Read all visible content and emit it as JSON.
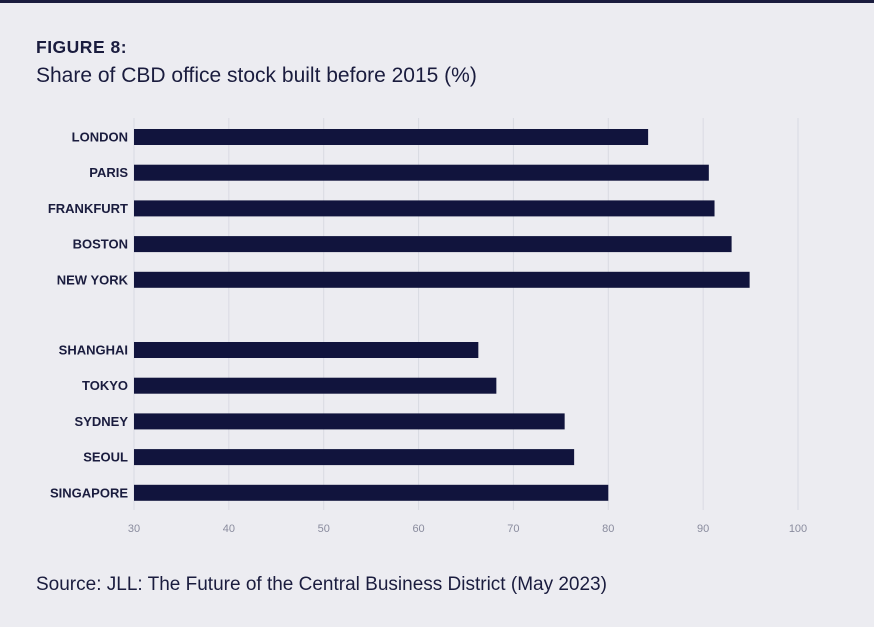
{
  "figure": {
    "label": "FIGURE 8:",
    "title": "Share of CBD office stock built before 2015 (%)",
    "source": "Source: JLL: The Future of the Central Business District (May 2023)"
  },
  "colors": {
    "bar": "#11143d",
    "grid": "#d9dae2",
    "background": "#ececf1",
    "text": "#1a1c3e"
  },
  "chart_data": {
    "type": "bar",
    "orientation": "horizontal",
    "groups": [
      {
        "categories": [
          "LONDON",
          "PARIS",
          "FRANKFURT",
          "BOSTON",
          "NEW YORK"
        ],
        "values": [
          84.2,
          90.6,
          91.2,
          93.0,
          94.9
        ]
      },
      {
        "categories": [
          "SHANGHAI",
          "TOKYO",
          "SYDNEY",
          "SEOUL",
          "SINGAPORE"
        ],
        "values": [
          66.3,
          68.2,
          75.4,
          76.4,
          80.0
        ]
      }
    ],
    "xlim": [
      30,
      100
    ],
    "xticks": [
      30,
      40,
      50,
      60,
      70,
      80,
      90,
      100
    ],
    "grid": "vertical",
    "legend": "none"
  }
}
